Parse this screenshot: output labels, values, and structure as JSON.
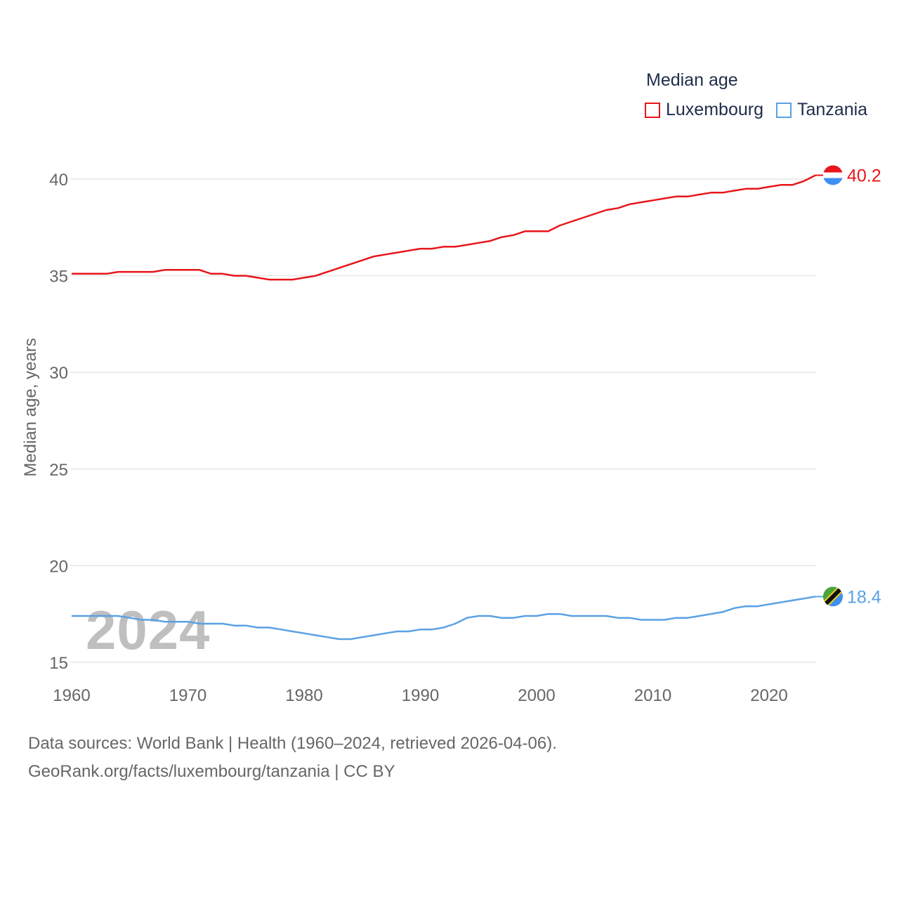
{
  "chart_data": {
    "type": "line",
    "legend_title": "Median age",
    "ylabel": "Median age, years",
    "xlabel": "",
    "xlim": [
      1960,
      2024
    ],
    "ylim": [
      15,
      41.5
    ],
    "x_ticks": [
      1960,
      1970,
      1980,
      1990,
      2000,
      2010,
      2020
    ],
    "y_ticks": [
      15,
      20,
      25,
      30,
      35,
      40
    ],
    "year_watermark": "2024",
    "series": [
      {
        "name": "Luxembourg",
        "color": "#e8151b",
        "end_label": "40.2",
        "years": [
          1960,
          1961,
          1962,
          1963,
          1964,
          1965,
          1966,
          1967,
          1968,
          1969,
          1970,
          1971,
          1972,
          1973,
          1974,
          1975,
          1976,
          1977,
          1978,
          1979,
          1980,
          1981,
          1982,
          1983,
          1984,
          1985,
          1986,
          1987,
          1988,
          1989,
          1990,
          1991,
          1992,
          1993,
          1994,
          1995,
          1996,
          1997,
          1998,
          1999,
          2000,
          2001,
          2002,
          2003,
          2004,
          2005,
          2006,
          2007,
          2008,
          2009,
          2010,
          2011,
          2012,
          2013,
          2014,
          2015,
          2016,
          2017,
          2018,
          2019,
          2020,
          2021,
          2022,
          2023,
          2024
        ],
        "values": [
          35.1,
          35.1,
          35.1,
          35.1,
          35.2,
          35.2,
          35.2,
          35.2,
          35.3,
          35.3,
          35.3,
          35.3,
          35.1,
          35.1,
          35.0,
          35.0,
          34.9,
          34.8,
          34.8,
          34.8,
          34.9,
          35.0,
          35.2,
          35.4,
          35.6,
          35.8,
          36.0,
          36.1,
          36.2,
          36.3,
          36.4,
          36.4,
          36.5,
          36.5,
          36.6,
          36.7,
          36.8,
          37.0,
          37.1,
          37.3,
          37.3,
          37.3,
          37.6,
          37.8,
          38.0,
          38.2,
          38.4,
          38.5,
          38.7,
          38.8,
          38.9,
          39.0,
          39.1,
          39.1,
          39.2,
          39.3,
          39.3,
          39.4,
          39.5,
          39.5,
          39.6,
          39.7,
          39.7,
          39.9,
          40.2
        ]
      },
      {
        "name": "Tanzania",
        "color": "#5aa1e3",
        "end_label": "18.4",
        "years": [
          1960,
          1961,
          1962,
          1963,
          1964,
          1965,
          1966,
          1967,
          1968,
          1969,
          1970,
          1971,
          1972,
          1973,
          1974,
          1975,
          1976,
          1977,
          1978,
          1979,
          1980,
          1981,
          1982,
          1983,
          1984,
          1985,
          1986,
          1987,
          1988,
          1989,
          1990,
          1991,
          1992,
          1993,
          1994,
          1995,
          1996,
          1997,
          1998,
          1999,
          2000,
          2001,
          2002,
          2003,
          2004,
          2005,
          2006,
          2007,
          2008,
          2009,
          2010,
          2011,
          2012,
          2013,
          2014,
          2015,
          2016,
          2017,
          2018,
          2019,
          2020,
          2021,
          2022,
          2023,
          2024
        ],
        "values": [
          17.4,
          17.4,
          17.4,
          17.4,
          17.4,
          17.3,
          17.2,
          17.2,
          17.1,
          17.1,
          17.1,
          17.0,
          17.0,
          17.0,
          16.9,
          16.9,
          16.8,
          16.8,
          16.7,
          16.6,
          16.5,
          16.4,
          16.3,
          16.2,
          16.2,
          16.3,
          16.4,
          16.5,
          16.6,
          16.6,
          16.7,
          16.7,
          16.8,
          17.0,
          17.3,
          17.4,
          17.4,
          17.3,
          17.3,
          17.4,
          17.4,
          17.5,
          17.5,
          17.4,
          17.4,
          17.4,
          17.4,
          17.3,
          17.3,
          17.2,
          17.2,
          17.2,
          17.3,
          17.3,
          17.4,
          17.5,
          17.6,
          17.8,
          17.9,
          17.9,
          18.0,
          18.1,
          18.2,
          18.3,
          18.4
        ]
      }
    ],
    "source_line_1": "Data sources: World Bank | Health (1960–2024, retrieved 2026-04-06).",
    "source_line_2": "GeoRank.org/facts/luxembourg/tanzania | CC BY"
  },
  "colors": {
    "grid": "#e6e6e6",
    "tick_text": "#666666",
    "legend_text": "#1f2d4a",
    "watermark": "#bfbfbf"
  }
}
